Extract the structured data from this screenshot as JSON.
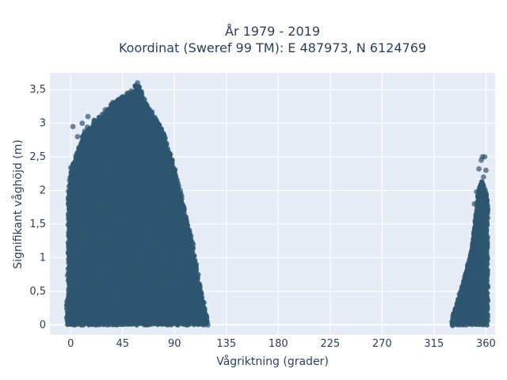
{
  "chart_data": {
    "type": "scatter",
    "title": "År 1979 - 2019",
    "subtitle": "Koordinat (Sweref 99 TM): E 487973, N 6124769",
    "xlabel": "Vågriktning (grader)",
    "ylabel": "Signifikant våghöjd (m)",
    "xlim": [
      -18,
      368
    ],
    "ylim": [
      -0.15,
      3.75
    ],
    "x_ticks": [
      0,
      45,
      90,
      135,
      180,
      225,
      270,
      315,
      360
    ],
    "x_tick_labels": [
      "0",
      "45",
      "90",
      "135",
      "180",
      "225",
      "270",
      "315",
      "360"
    ],
    "y_ticks": [
      0,
      0.5,
      1,
      1.5,
      2,
      2.5,
      3,
      3.5
    ],
    "y_tick_labels": [
      "0",
      "0,5",
      "1",
      "1,5",
      "2",
      "2,5",
      "3",
      "3,5"
    ],
    "grid": true,
    "background_color": "#e5ecf6",
    "grid_color": "#ffffff",
    "marker_color": "#2f5670",
    "series": [
      {
        "envelope": [
          [
            -3,
            0.4
          ],
          [
            -2,
            1.9
          ],
          [
            0,
            2.3
          ],
          [
            5,
            2.5
          ],
          [
            10,
            2.8
          ],
          [
            15,
            2.9
          ],
          [
            20,
            3.0
          ],
          [
            28,
            3.1
          ],
          [
            35,
            3.25
          ],
          [
            42,
            3.35
          ],
          [
            48,
            3.4
          ],
          [
            54,
            3.45
          ],
          [
            58,
            3.6
          ],
          [
            62,
            3.4
          ],
          [
            66,
            3.25
          ],
          [
            72,
            3.1
          ],
          [
            78,
            2.95
          ],
          [
            82,
            2.75
          ],
          [
            86,
            2.55
          ],
          [
            90,
            2.3
          ],
          [
            93,
            2.1
          ],
          [
            96,
            1.9
          ],
          [
            100,
            1.6
          ],
          [
            104,
            1.35
          ],
          [
            107,
            1.05
          ],
          [
            110,
            0.75
          ],
          [
            113,
            0.5
          ],
          [
            116,
            0.25
          ],
          [
            119,
            0.05
          ]
        ],
        "outliers": [
          [
            2,
            2.95
          ],
          [
            6,
            2.8
          ],
          [
            8,
            2.55
          ],
          [
            10,
            3.0
          ],
          [
            12,
            2.8
          ],
          [
            15,
            3.1
          ],
          [
            18,
            2.75
          ],
          [
            21,
            2.9
          ],
          [
            24,
            2.8
          ],
          [
            27,
            3.05
          ],
          [
            30,
            3.2
          ],
          [
            33,
            3.15
          ],
          [
            37,
            3.3
          ],
          [
            40,
            3.25
          ],
          [
            44,
            3.38
          ],
          [
            50,
            3.45
          ],
          [
            52,
            3.44
          ],
          [
            56,
            3.55
          ],
          [
            58,
            3.6
          ],
          [
            61,
            3.43
          ],
          [
            69,
            3.1
          ],
          [
            75,
            3.0
          ],
          [
            83,
            2.7
          ],
          [
            88,
            2.45
          ],
          [
            95,
            2.0
          ],
          [
            98,
            1.75
          ],
          [
            103,
            1.4
          ],
          [
            106,
            1.15
          ],
          [
            109,
            0.9
          ],
          [
            112,
            0.55
          ],
          [
            118,
            0.05
          ],
          [
            0,
            2.1
          ],
          [
            1,
            2.2
          ],
          [
            -1,
            1.95
          ]
        ]
      },
      {
        "envelope": [
          [
            331,
            0.05
          ],
          [
            333,
            0.2
          ],
          [
            336,
            0.35
          ],
          [
            339,
            0.5
          ],
          [
            342,
            0.7
          ],
          [
            345,
            0.9
          ],
          [
            348,
            1.1
          ],
          [
            350,
            1.4
          ],
          [
            352,
            1.7
          ],
          [
            353,
            1.95
          ],
          [
            355,
            2.05
          ],
          [
            357,
            2.15
          ],
          [
            359,
            2.0
          ],
          [
            361,
            1.9
          ],
          [
            361,
            0.05
          ]
        ],
        "outliers": [
          [
            354,
            2.32
          ],
          [
            356,
            2.45
          ],
          [
            357,
            2.5
          ],
          [
            359,
            2.5
          ],
          [
            360,
            2.3
          ],
          [
            358,
            2.2
          ],
          [
            352,
            1.98
          ],
          [
            350,
            1.8
          ]
        ]
      }
    ]
  }
}
